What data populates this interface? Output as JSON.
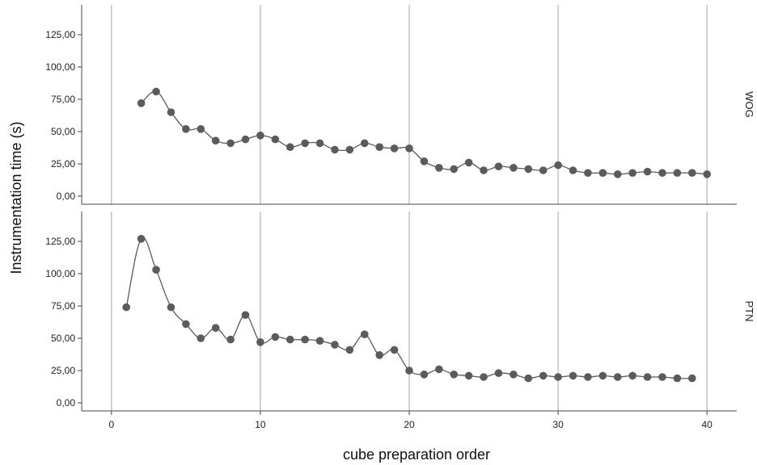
{
  "chart_data": {
    "type": "line",
    "xlabel": "cube preparation order",
    "ylabel": "Instrumentation time (s)",
    "xlim": [
      -2,
      42
    ],
    "ylim": [
      -5,
      147
    ],
    "x_ticks": [
      0,
      10,
      20,
      30,
      40
    ],
    "x_tick_labels": [
      "0",
      "10",
      "20",
      "30",
      "40"
    ],
    "y_ticks": [
      0,
      25,
      50,
      75,
      100,
      125
    ],
    "y_tick_labels": [
      "0,00",
      "25,00",
      "50,00",
      "75,00",
      "100,00",
      "125,00"
    ],
    "vertical_gridlines": true,
    "colors": {
      "series": "#5b5b5b",
      "gridline": "#bdbdbd",
      "axis": "#444444"
    },
    "panels": [
      {
        "label": "WOG",
        "x": [
          2,
          3,
          4,
          5,
          6,
          7,
          8,
          9,
          10,
          11,
          12,
          13,
          14,
          15,
          16,
          17,
          18,
          19,
          20,
          21,
          22,
          23,
          24,
          25,
          26,
          27,
          28,
          29,
          30,
          31,
          32,
          33,
          34,
          35,
          36,
          37,
          38,
          39,
          40
        ],
        "y": [
          72,
          81,
          65,
          52,
          52,
          43,
          41,
          44,
          47,
          44,
          38,
          41,
          41,
          36,
          36,
          41,
          38,
          37,
          37,
          27,
          22,
          21,
          26,
          20,
          23,
          22,
          21,
          20,
          24,
          20,
          18,
          18,
          17,
          18,
          19,
          18,
          18,
          18,
          17
        ]
      },
      {
        "label": "PTN",
        "x": [
          1,
          2,
          3,
          4,
          5,
          6,
          7,
          8,
          9,
          10,
          11,
          12,
          13,
          14,
          15,
          16,
          17,
          18,
          19,
          20,
          21,
          22,
          23,
          24,
          25,
          26,
          27,
          28,
          29,
          30,
          31,
          32,
          33,
          34,
          35,
          36,
          37,
          38,
          39
        ],
        "y": [
          74,
          127,
          103,
          74,
          61,
          50,
          58,
          49,
          68,
          47,
          51,
          49,
          49,
          48,
          45,
          41,
          53,
          37,
          41,
          25,
          22,
          26,
          22,
          21,
          20,
          23,
          22,
          19,
          21,
          20,
          21,
          20,
          21,
          20,
          21,
          20,
          20,
          19,
          19
        ]
      }
    ]
  }
}
